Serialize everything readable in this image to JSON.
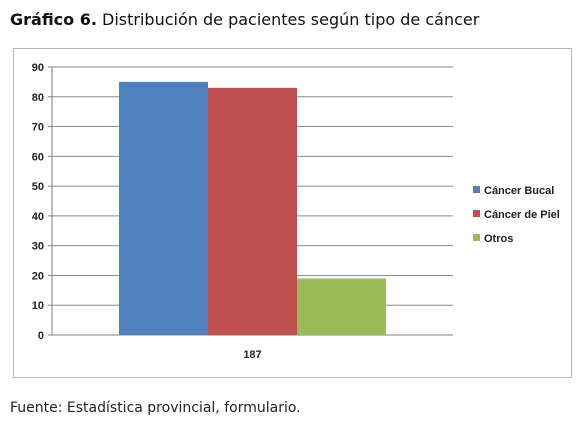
{
  "header": {
    "title_lead": "Gráfico 6.",
    "title_rest": "Distribución de pacientes según tipo de cáncer"
  },
  "footer": {
    "source": "Fuente: Estadística provincial, formulario."
  },
  "chart_data": {
    "type": "bar",
    "categories": [
      "187"
    ],
    "series": [
      {
        "name": "Cáncer Bucal",
        "values": [
          85
        ],
        "color": "#4f81bd"
      },
      {
        "name": "Cáncer de Piel",
        "values": [
          83
        ],
        "color": "#c0504d"
      },
      {
        "name": "Otros",
        "values": [
          19
        ],
        "color": "#9bbb59"
      }
    ],
    "yticks": [
      "0",
      "10",
      "20",
      "30",
      "40",
      "50",
      "60",
      "70",
      "80",
      "90"
    ],
    "ylim": [
      0,
      90
    ],
    "grid": true,
    "legend": "right"
  }
}
